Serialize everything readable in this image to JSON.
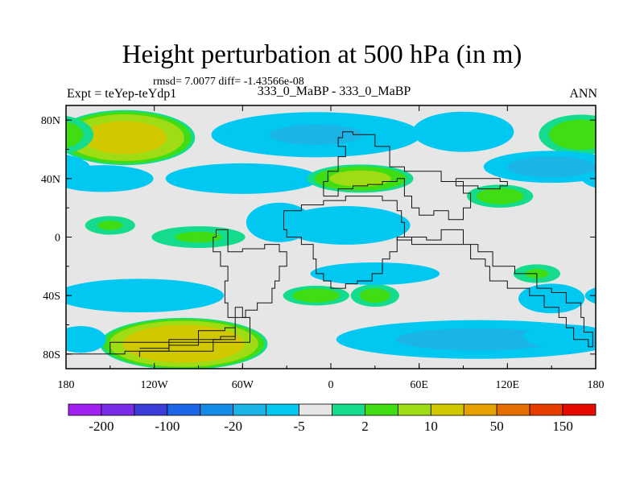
{
  "header": {
    "title": "Height perturbation at 500 hPa (in m)",
    "stats": "rmsd= 7.0077 diff= -1.43566e-08",
    "experiment": "Expt = teYep-teYdp1",
    "cases": "333_0_MaBP - 333_0_MaBP",
    "season": "ANN"
  },
  "chart_data": {
    "type": "heatmap",
    "title": "Height perturbation at 500 hPa (in m)",
    "xlabel": "",
    "ylabel": "",
    "x_range": [
      -180,
      180
    ],
    "y_range": [
      -90,
      90
    ],
    "x_ticks": [
      {
        "value": -180,
        "label": "180"
      },
      {
        "value": -120,
        "label": "120W"
      },
      {
        "value": -60,
        "label": "60W"
      },
      {
        "value": 0,
        "label": "0"
      },
      {
        "value": 60,
        "label": "60E"
      },
      {
        "value": 120,
        "label": "120E"
      },
      {
        "value": 180,
        "label": "180"
      }
    ],
    "y_ticks": [
      {
        "value": 80,
        "label": "80N"
      },
      {
        "value": 40,
        "label": "40N"
      },
      {
        "value": 0,
        "label": "0"
      },
      {
        "value": -40,
        "label": "40S"
      },
      {
        "value": -80,
        "label": "80S"
      }
    ],
    "colorbar": {
      "colors": [
        "#a020f0",
        "#7a2ce8",
        "#3c3cd8",
        "#1a66e6",
        "#148ce6",
        "#1ab4e6",
        "#00c8f0",
        "#e6e6e6",
        "#14dc8c",
        "#40dc14",
        "#a0dc14",
        "#d2c800",
        "#e6a000",
        "#e66e00",
        "#e63c00",
        "#e60a00"
      ],
      "labels": [
        {
          "after": 1,
          "text": "-200"
        },
        {
          "after": 3,
          "text": "-100"
        },
        {
          "after": 5,
          "text": "-20"
        },
        {
          "after": 7,
          "text": "-5"
        },
        {
          "after": 9,
          "text": "2"
        },
        {
          "after": 11,
          "text": "10"
        },
        {
          "after": 13,
          "text": "50"
        },
        {
          "after": 15,
          "text": "150"
        }
      ]
    },
    "anomalies": [
      {
        "name": "arctic-high-west",
        "lon": -140,
        "lat": 68,
        "rlon": 38,
        "rlat": 15,
        "value": 30
      },
      {
        "name": "arctic-low",
        "lon": -10,
        "lat": 70,
        "rlon": 60,
        "rlat": 13,
        "value": -12
      },
      {
        "name": "arctic-low-east",
        "lon": 90,
        "lat": 72,
        "rlon": 30,
        "rlat": 12,
        "value": -9
      },
      {
        "name": "arctic-high-east",
        "lon": 170,
        "lat": 70,
        "rlon": 25,
        "rlat": 12,
        "value": 9
      },
      {
        "name": "midlat-low-west",
        "lon": -155,
        "lat": 40,
        "rlon": 30,
        "rlat": 8,
        "value": -9
      },
      {
        "name": "midlat-low-atlantic",
        "lon": -60,
        "lat": 40,
        "rlon": 45,
        "rlat": 9,
        "value": -10
      },
      {
        "name": "midlat-high-europe",
        "lon": 20,
        "lat": 40,
        "rlon": 30,
        "rlat": 8,
        "value": 14
      },
      {
        "name": "midlat-low-pacific",
        "lon": 150,
        "lat": 48,
        "rlon": 38,
        "rlat": 9,
        "value": -16
      },
      {
        "name": "midlat-high-pacific",
        "lon": 115,
        "lat": 28,
        "rlon": 20,
        "rlat": 7,
        "value": 8
      },
      {
        "name": "tropic-low-atlantic",
        "lon": -35,
        "lat": 10,
        "rlon": 20,
        "rlat": 12,
        "value": -8
      },
      {
        "name": "tropic-low-africa",
        "lon": 10,
        "lat": 8,
        "rlon": 40,
        "rlat": 12,
        "value": -7
      },
      {
        "name": "tropic-high-west",
        "lon": -150,
        "lat": 8,
        "rlon": 16,
        "rlat": 6,
        "value": 6
      },
      {
        "name": "tropic-high-pacific",
        "lon": -90,
        "lat": 0,
        "rlon": 30,
        "rlat": 7,
        "value": 6
      },
      {
        "name": "south-low-west",
        "lon": -130,
        "lat": -40,
        "rlon": 50,
        "rlat": 10,
        "value": -9
      },
      {
        "name": "south-high-atlantic",
        "lon": -10,
        "lat": -40,
        "rlon": 20,
        "rlat": 6,
        "value": 8
      },
      {
        "name": "south-high-indian",
        "lon": 30,
        "lat": -40,
        "rlon": 15,
        "rlat": 7,
        "value": 7
      },
      {
        "name": "south-low-indian",
        "lon": 30,
        "lat": -25,
        "rlon": 40,
        "rlat": 7,
        "value": -7
      },
      {
        "name": "south-low-pacific",
        "lon": 150,
        "lat": -42,
        "rlon": 20,
        "rlat": 9,
        "value": -8
      },
      {
        "name": "south-high-pacific",
        "lon": 140,
        "lat": -25,
        "rlon": 15,
        "rlat": 6,
        "value": 6
      },
      {
        "name": "polar-high",
        "lon": -100,
        "lat": -73,
        "rlon": 45,
        "rlat": 14,
        "value": 40
      },
      {
        "name": "polar-low",
        "lon": 100,
        "lat": -70,
        "rlon": 80,
        "rlat": 11,
        "value": -14
      },
      {
        "name": "polar-low-east",
        "lon": 160,
        "lat": -68,
        "rlon": 25,
        "rlat": 7,
        "value": -10
      },
      {
        "name": "polar-low-west",
        "lon": -170,
        "lat": -70,
        "rlon": 15,
        "rlat": 8,
        "value": -9
      }
    ],
    "land_outlines": [
      {
        "name": "antarctic-peninsula-ridges",
        "points": [
          [
            -150,
            -80
          ],
          [
            -55,
            -72
          ],
          [
            -55,
            -62
          ],
          [
            -60,
            -55
          ],
          [
            -65,
            -48
          ],
          [
            -65,
            -60
          ],
          [
            -75,
            -68
          ],
          [
            -90,
            -70
          ],
          [
            -110,
            -74
          ],
          [
            -140,
            -78
          ],
          [
            -180,
            -80
          ]
        ]
      },
      {
        "name": "antarctic-inner-ridge",
        "points": [
          [
            -130,
            -82
          ],
          [
            -80,
            -78
          ],
          [
            -65,
            -70
          ],
          [
            -72,
            -62
          ],
          [
            -90,
            -64
          ],
          [
            -110,
            -70
          ],
          [
            -130,
            -76
          ]
        ]
      },
      {
        "name": "america-coast",
        "points": [
          [
            -60,
            -10
          ],
          [
            -45,
            -8
          ],
          [
            -35,
            -5
          ],
          [
            -30,
            -10
          ],
          [
            -35,
            -20
          ],
          [
            -38,
            -30
          ],
          [
            -40,
            -35
          ],
          [
            -50,
            -45
          ],
          [
            -58,
            -50
          ],
          [
            -70,
            -55
          ],
          [
            -72,
            -45
          ],
          [
            -70,
            -30
          ],
          [
            -75,
            -20
          ],
          [
            -80,
            -10
          ],
          [
            -78,
            0
          ],
          [
            -70,
            5
          ],
          [
            -60,
            -10
          ]
        ]
      },
      {
        "name": "africa-coast",
        "points": [
          [
            -32,
            18
          ],
          [
            -30,
            5
          ],
          [
            -20,
            0
          ],
          [
            -12,
            -5
          ],
          [
            -10,
            -15
          ],
          [
            -5,
            -25
          ],
          [
            0,
            -30
          ],
          [
            10,
            -35
          ],
          [
            18,
            -32
          ],
          [
            28,
            -30
          ],
          [
            35,
            -25
          ],
          [
            40,
            -15
          ],
          [
            45,
            -10
          ],
          [
            50,
            0
          ],
          [
            48,
            10
          ],
          [
            45,
            18
          ],
          [
            35,
            25
          ],
          [
            25,
            28
          ],
          [
            10,
            28
          ],
          [
            -5,
            25
          ],
          [
            -20,
            22
          ],
          [
            -32,
            18
          ]
        ]
      },
      {
        "name": "europe-asia-outline",
        "points": [
          [
            -5,
            28
          ],
          [
            -2,
            38
          ],
          [
            5,
            45
          ],
          [
            10,
            55
          ],
          [
            5,
            62
          ],
          [
            8,
            68
          ],
          [
            15,
            72
          ],
          [
            30,
            70
          ],
          [
            40,
            62
          ],
          [
            50,
            48
          ],
          [
            60,
            45
          ],
          [
            75,
            45
          ],
          [
            90,
            38
          ],
          [
            95,
            30
          ],
          [
            90,
            20
          ],
          [
            80,
            12
          ],
          [
            70,
            18
          ],
          [
            60,
            15
          ],
          [
            55,
            20
          ],
          [
            50,
            28
          ],
          [
            45,
            40
          ],
          [
            35,
            38
          ],
          [
            25,
            36
          ],
          [
            15,
            35
          ],
          [
            5,
            33
          ],
          [
            -5,
            28
          ]
        ]
      },
      {
        "name": "asia-south",
        "points": [
          [
            45,
            0
          ],
          [
            55,
            -2
          ],
          [
            65,
            0
          ],
          [
            75,
            -2
          ],
          [
            90,
            5
          ],
          [
            100,
            -5
          ],
          [
            110,
            -10
          ],
          [
            125,
            -20
          ],
          [
            140,
            -25
          ],
          [
            150,
            -35
          ],
          [
            160,
            -38
          ],
          [
            170,
            -45
          ],
          [
            172,
            -55
          ],
          [
            178,
            -65
          ],
          [
            175,
            -75
          ],
          [
            165,
            -70
          ],
          [
            160,
            -62
          ],
          [
            155,
            -55
          ],
          [
            145,
            -48
          ],
          [
            135,
            -40
          ],
          [
            120,
            -35
          ],
          [
            108,
            -30
          ],
          [
            105,
            -20
          ],
          [
            95,
            -15
          ],
          [
            85,
            -5
          ],
          [
            70,
            -5
          ],
          [
            55,
            -5
          ],
          [
            45,
            0
          ]
        ]
      },
      {
        "name": "east-asia-coast",
        "points": [
          [
            85,
            40
          ],
          [
            100,
            40
          ],
          [
            115,
            40
          ],
          [
            120,
            38
          ],
          [
            115,
            35
          ],
          [
            100,
            33
          ],
          [
            85,
            35
          ],
          [
            85,
            40
          ]
        ]
      }
    ]
  }
}
